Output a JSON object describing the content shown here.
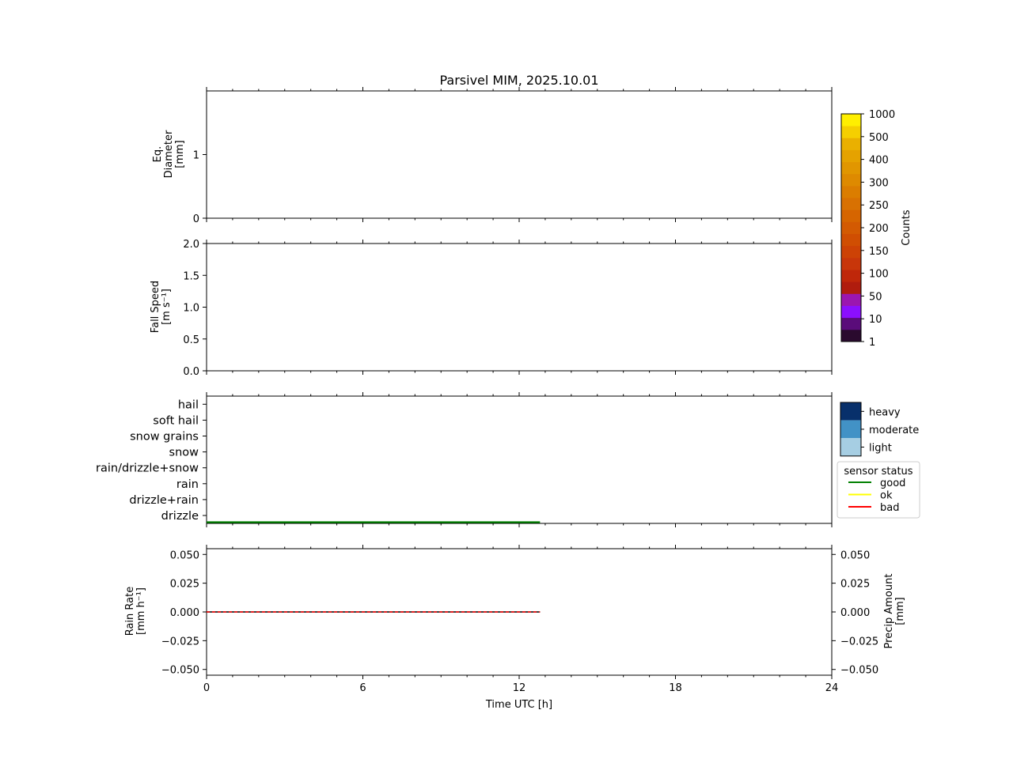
{
  "title": "Parsivel MIM, 2025.10.01",
  "colors": {
    "frame": "#000000",
    "status_good": "#008000",
    "status_ok": "#ffff00",
    "status_bad": "#ff0000",
    "amount_line": "#000000",
    "intensity_heavy": "#08306b",
    "intensity_moderate": "#4292c6",
    "intensity_light": "#a6cee3"
  },
  "chart_data": [
    {
      "id": "diameter",
      "type": "heatmap",
      "title": "Parsivel MIM, 2025.10.01",
      "ylabel_lines": [
        "Eq.",
        "Diameter",
        "[mm]"
      ],
      "xlim": [
        0,
        24
      ],
      "ylim": [
        0,
        2
      ],
      "yticks": [
        {
          "value": 0,
          "label": "0"
        },
        {
          "value": 1,
          "label": "1"
        }
      ],
      "values": []
    },
    {
      "id": "fallspeed",
      "type": "heatmap",
      "ylabel_lines": [
        "Fall Speed",
        "[m s⁻¹]"
      ],
      "xlim": [
        0,
        24
      ],
      "ylim": [
        0,
        2
      ],
      "yticks": [
        {
          "value": 0.0,
          "label": "0.0"
        },
        {
          "value": 0.5,
          "label": "0.5"
        },
        {
          "value": 1.0,
          "label": "1.0"
        },
        {
          "value": 1.5,
          "label": "1.5"
        },
        {
          "value": 2.0,
          "label": "2.0"
        }
      ],
      "values": []
    },
    {
      "id": "precip_type",
      "type": "line",
      "categories": [
        "drizzle",
        "drizzle+rain",
        "rain",
        "rain/drizzle+snow",
        "snow",
        "snow grains",
        "soft hail",
        "hail"
      ],
      "xlim": [
        0,
        24
      ],
      "sensor_status": [
        {
          "status": "good",
          "x": [
            0,
            12.8
          ]
        }
      ],
      "intensity_legend": [
        "heavy",
        "moderate",
        "light"
      ],
      "legend": {
        "title": "sensor status",
        "entries": [
          "good",
          "ok",
          "bad"
        ],
        "placement": "right"
      }
    },
    {
      "id": "rain",
      "type": "line",
      "ylabel_lines": [
        "Rain Rate",
        "[mm h⁻¹]"
      ],
      "ylabel_right_lines": [
        "Precip Amount",
        "[mm]"
      ],
      "xlabel": "Time UTC [h]",
      "xlim": [
        0,
        24
      ],
      "ylim": [
        -0.055,
        0.055
      ],
      "xticks": [
        {
          "value": 0,
          "label": "0"
        },
        {
          "value": 6,
          "label": "6"
        },
        {
          "value": 12,
          "label": "12"
        },
        {
          "value": 18,
          "label": "18"
        },
        {
          "value": 24,
          "label": "24"
        }
      ],
      "yticks": [
        {
          "value": 0.05,
          "label": "0.050"
        },
        {
          "value": 0.025,
          "label": "0.025"
        },
        {
          "value": 0.0,
          "label": "0.000"
        },
        {
          "value": -0.025,
          "label": "−0.025"
        },
        {
          "value": -0.05,
          "label": "−0.050"
        }
      ],
      "series": [
        {
          "x": [
            0,
            12.8
          ],
          "y": [
            0,
            0
          ],
          "color": "#000000"
        },
        {
          "x": [
            0,
            12.8
          ],
          "y": [
            0,
            0
          ],
          "color": "#ff0000",
          "dashed": true
        }
      ]
    }
  ],
  "colorbar": {
    "label": "Counts",
    "levels": [
      "1",
      "10",
      "50",
      "100",
      "150",
      "200",
      "250",
      "300",
      "400",
      "500",
      "1000"
    ],
    "colors": [
      "#2a0a2e",
      "#5a0c7a",
      "#8b0fff",
      "#9b16b0",
      "#b01c0e",
      "#bf270a",
      "#c8360a",
      "#cd4205",
      "#d04e02",
      "#d35a02",
      "#d66500",
      "#d87102",
      "#db7d00",
      "#de8a00",
      "#e19600",
      "#e5a200",
      "#eab000",
      "#f5cf00",
      "#ffef00"
    ]
  }
}
